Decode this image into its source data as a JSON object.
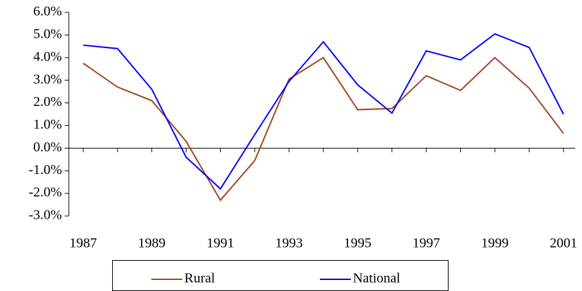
{
  "chart_data": {
    "type": "line",
    "x": [
      1987,
      1988,
      1989,
      1990,
      1991,
      1992,
      1993,
      1994,
      1995,
      1996,
      1997,
      1998,
      1999,
      2000,
      2001
    ],
    "series": [
      {
        "name": "Rural",
        "color": "#a0461e",
        "values": [
          3.75,
          2.7,
          2.1,
          0.3,
          -2.3,
          -0.55,
          3.05,
          4.0,
          1.7,
          1.75,
          3.2,
          2.55,
          4.0,
          2.65,
          0.65
        ]
      },
      {
        "name": "National",
        "color": "#0000ff",
        "values": [
          4.55,
          4.4,
          2.6,
          -0.4,
          -1.8,
          0.6,
          2.95,
          4.7,
          2.8,
          1.55,
          4.3,
          3.9,
          5.05,
          4.45,
          1.5
        ]
      }
    ],
    "xlim": [
      1986.5,
      2001.5
    ],
    "xticks": [
      1987,
      1989,
      1991,
      1993,
      1995,
      1997,
      1999,
      2001
    ],
    "ylim": [
      -3,
      6
    ],
    "yticks": [
      {
        "value": -3,
        "label": "-3.0%"
      },
      {
        "value": -2,
        "label": "-2.0%"
      },
      {
        "value": -1,
        "label": "-1.0%"
      },
      {
        "value": 0,
        "label": "0.0%"
      },
      {
        "value": 1,
        "label": "1.0%"
      },
      {
        "value": 2,
        "label": "2.0%"
      },
      {
        "value": 3,
        "label": "3.0%"
      },
      {
        "value": 4,
        "label": "4.0%"
      },
      {
        "value": 5,
        "label": "5.0%"
      },
      {
        "value": 6,
        "label": "6.0%"
      }
    ]
  }
}
